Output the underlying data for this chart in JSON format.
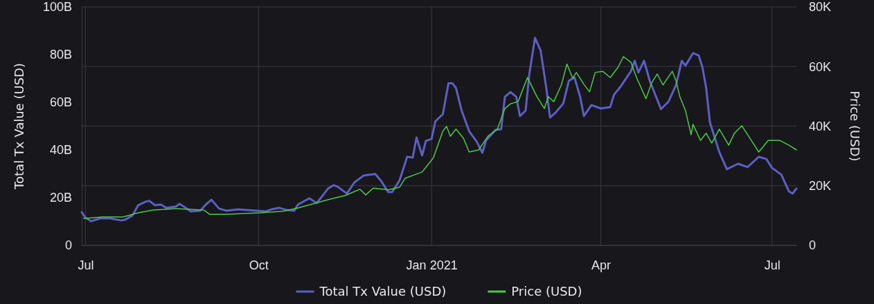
{
  "chart_data": {
    "type": "line",
    "xlabel": null,
    "ylabel": "Total Tx Value (USD)",
    "y2label": "Price (USD)",
    "xlim": [
      "2020-06-29",
      "2021-07-14"
    ],
    "xticks": [
      {
        "value": "2020-07-01",
        "label": "Jul"
      },
      {
        "value": "2020-10-01",
        "label": "Oct"
      },
      {
        "value": "2021-01-01",
        "label": "Jan 2021"
      },
      {
        "value": "2021-04-01",
        "label": "Apr"
      },
      {
        "value": "2021-07-01",
        "label": "Jul"
      }
    ],
    "ylim": [
      0,
      100
    ],
    "yticks": [
      {
        "value": 0,
        "label": "0"
      },
      {
        "value": 20,
        "label": "20B"
      },
      {
        "value": 40,
        "label": "40B"
      },
      {
        "value": 60,
        "label": "60B"
      },
      {
        "value": 80,
        "label": "80B"
      },
      {
        "value": 100,
        "label": "100B"
      }
    ],
    "y2lim": [
      0,
      80
    ],
    "y2ticks": [
      {
        "value": 0,
        "label": "0"
      },
      {
        "value": 20,
        "label": "20K"
      },
      {
        "value": 40,
        "label": "40K"
      },
      {
        "value": 60,
        "label": "60K"
      },
      {
        "value": 80,
        "label": "80K"
      }
    ],
    "grid": true,
    "legend": "bottom",
    "marker": "none",
    "line_style": "solid",
    "series": [
      {
        "name": "Total Tx Value (USD)",
        "color": "#5c5fc4",
        "x": [
          "2020-06-29",
          "2020-07-01",
          "2020-07-04",
          "2020-07-09",
          "2020-07-14",
          "2020-07-20",
          "2020-07-22",
          "2020-07-26",
          "2020-07-29",
          "2020-08-02",
          "2020-08-04",
          "2020-08-07",
          "2020-08-10",
          "2020-08-13",
          "2020-08-18",
          "2020-08-20",
          "2020-08-23",
          "2020-08-26",
          "2020-08-31",
          "2020-09-03",
          "2020-09-06",
          "2020-09-10",
          "2020-09-14",
          "2020-09-20",
          "2020-09-25",
          "2020-09-30",
          "2020-10-05",
          "2020-10-08",
          "2020-10-12",
          "2020-10-16",
          "2020-10-20",
          "2020-10-22",
          "2020-10-28",
          "2020-11-01",
          "2020-11-07",
          "2020-11-10",
          "2020-11-12",
          "2020-11-17",
          "2020-11-21",
          "2020-11-26",
          "2020-12-02",
          "2020-12-05",
          "2020-12-09",
          "2020-12-11",
          "2020-12-15",
          "2020-12-19",
          "2020-12-22",
          "2020-12-24",
          "2020-12-27",
          "2020-12-29",
          "2021-01-01",
          "2021-01-03",
          "2021-01-07",
          "2021-01-10",
          "2021-01-12",
          "2021-01-14",
          "2021-01-17",
          "2021-01-21",
          "2021-01-25",
          "2021-01-28",
          "2021-01-30",
          "2021-02-04",
          "2021-02-07",
          "2021-02-09",
          "2021-02-12",
          "2021-02-15",
          "2021-02-17",
          "2021-02-20",
          "2021-02-22",
          "2021-02-25",
          "2021-02-28",
          "2021-03-03",
          "2021-03-05",
          "2021-03-08",
          "2021-03-12",
          "2021-03-15",
          "2021-03-18",
          "2021-03-21",
          "2021-03-23",
          "2021-03-27",
          "2021-04-01",
          "2021-04-06",
          "2021-04-08",
          "2021-04-11",
          "2021-04-17",
          "2021-04-19",
          "2021-04-21",
          "2021-04-24",
          "2021-04-27",
          "2021-05-03",
          "2021-05-07",
          "2021-05-11",
          "2021-05-14",
          "2021-05-16",
          "2021-05-20",
          "2021-05-23",
          "2021-05-25",
          "2021-05-27",
          "2021-05-29",
          "2021-06-03",
          "2021-06-07",
          "2021-06-13",
          "2021-06-18",
          "2021-06-24",
          "2021-06-28",
          "2021-07-01",
          "2021-07-06",
          "2021-07-10",
          "2021-07-12",
          "2021-07-14"
        ],
        "values": [
          13.9,
          11.6,
          10.1,
          11.3,
          11.3,
          10.4,
          10.7,
          12.5,
          16.8,
          18.3,
          18.6,
          16.8,
          17.1,
          15.7,
          16.2,
          17.4,
          15.9,
          14.2,
          14.5,
          17.1,
          19.1,
          15.4,
          14.5,
          15.1,
          14.8,
          14.5,
          14.2,
          15.1,
          15.7,
          14.8,
          14.5,
          17.1,
          19.7,
          17.7,
          23.8,
          25.2,
          24.6,
          21.7,
          26.4,
          29.3,
          29.9,
          27.2,
          22.3,
          22.3,
          27.2,
          37.1,
          36.8,
          45.2,
          37.7,
          43.8,
          44.6,
          52,
          55,
          68,
          68,
          66,
          56.5,
          47.8,
          43.5,
          38.8,
          44,
          48.4,
          48.7,
          62.3,
          64.3,
          62.3,
          54.2,
          56.5,
          71.9,
          87,
          81.7,
          66,
          53.6,
          55.7,
          59.4,
          69,
          70.4,
          62.3,
          54.2,
          58.8,
          57.4,
          58,
          63.2,
          66,
          73,
          77.4,
          72.5,
          77.4,
          69,
          57.1,
          60.3,
          67.2,
          77.4,
          75.4,
          80.6,
          79.7,
          74.8,
          66,
          51.6,
          39.1,
          31.9,
          34.2,
          32.8,
          37.1,
          36.2,
          32.5,
          29.6,
          22.6,
          21.7,
          23.8
        ]
      },
      {
        "name": "Price (USD)",
        "color": "#4ccb45",
        "axis": "y2",
        "x": [
          "2020-06-30",
          "2020-07-10",
          "2020-07-21",
          "2020-07-29",
          "2020-08-06",
          "2020-08-18",
          "2020-09-02",
          "2020-09-05",
          "2020-09-13",
          "2020-10-02",
          "2020-10-14",
          "2020-10-22",
          "2020-11-03",
          "2020-11-07",
          "2020-11-16",
          "2020-11-24",
          "2020-11-27",
          "2020-12-01",
          "2020-12-09",
          "2020-12-15",
          "2020-12-18",
          "2020-12-27",
          "2021-01-02",
          "2021-01-07",
          "2021-01-09",
          "2021-01-11",
          "2021-01-14",
          "2021-01-18",
          "2021-01-21",
          "2021-01-26",
          "2021-01-31",
          "2021-02-05",
          "2021-02-09",
          "2021-02-12",
          "2021-02-16",
          "2021-02-21",
          "2021-02-26",
          "2021-03-02",
          "2021-03-04",
          "2021-03-07",
          "2021-03-11",
          "2021-03-14",
          "2021-03-17",
          "2021-03-19",
          "2021-03-23",
          "2021-03-26",
          "2021-03-29",
          "2021-04-02",
          "2021-04-06",
          "2021-04-10",
          "2021-04-13",
          "2021-04-17",
          "2021-04-20",
          "2021-04-25",
          "2021-04-28",
          "2021-05-01",
          "2021-05-04",
          "2021-05-09",
          "2021-05-11",
          "2021-05-13",
          "2021-05-16",
          "2021-05-19",
          "2021-05-20",
          "2021-05-24",
          "2021-05-27",
          "2021-05-30",
          "2021-06-03",
          "2021-06-08",
          "2021-06-11",
          "2021-06-15",
          "2021-06-20",
          "2021-06-24",
          "2021-06-29",
          "2021-07-05",
          "2021-07-10",
          "2021-07-14"
        ],
        "values": [
          9.0,
          9.5,
          9.5,
          10.9,
          11.8,
          12.3,
          11.8,
          10.4,
          10.4,
          10.9,
          11.4,
          12.5,
          14.6,
          15.3,
          16.7,
          18.8,
          16.9,
          19.2,
          18.6,
          19.5,
          22.5,
          24.6,
          29.4,
          38.3,
          39.9,
          36.6,
          39,
          35.9,
          31.3,
          32,
          36.6,
          39,
          45.9,
          47.5,
          48.2,
          56.3,
          49.9,
          45.9,
          49.9,
          48.2,
          53.8,
          60.8,
          56.1,
          58,
          54,
          51.5,
          58,
          58.4,
          56.3,
          59.6,
          63.3,
          61.4,
          56.3,
          49.2,
          54.5,
          57.5,
          53.8,
          58.4,
          55.2,
          49.9,
          45.2,
          37.1,
          40.6,
          35.2,
          37.6,
          34.3,
          39,
          33.6,
          37.6,
          40.1,
          35.2,
          31.3,
          35.2,
          35.2,
          33.6,
          32
        ]
      }
    ]
  }
}
